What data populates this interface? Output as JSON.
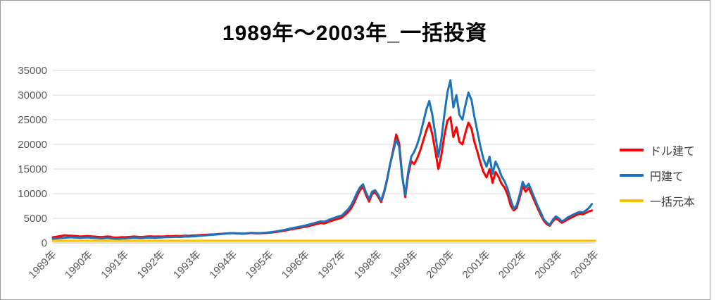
{
  "title": "1989年～2003年_一括投資",
  "colors": {
    "dollar": "#ff0000",
    "yen": "#1b73b9",
    "principal": "#ffc000",
    "gridline": "#d9d9d9",
    "axis_line": "#bfbfbf",
    "tick_text": "#595959",
    "frame_border": "#9a9a9a"
  },
  "chart_data": {
    "type": "line",
    "title": "1989年～2003年_一括投資",
    "xlabel": "",
    "ylabel": "",
    "ylim": [
      0,
      35000
    ],
    "grid": true,
    "legend_position": "right",
    "y_ticks": [
      0,
      5000,
      10000,
      15000,
      20000,
      25000,
      30000,
      35000
    ],
    "x_tick_labels": [
      "1989年",
      "1990年",
      "1991年",
      "1992年",
      "1993年",
      "1994年",
      "1995年",
      "1996年",
      "1997年",
      "1998年",
      "1999年",
      "2000年",
      "2001年",
      "2002年",
      "2003年",
      "2003年"
    ],
    "x_start_year": 1989,
    "x_end_year": 2004,
    "points_per_year": 12,
    "series": [
      {
        "name": "ドル建て",
        "color": "#ff0000",
        "values": [
          1150,
          1250,
          1350,
          1450,
          1550,
          1500,
          1480,
          1430,
          1380,
          1300,
          1340,
          1400,
          1380,
          1330,
          1280,
          1230,
          1180,
          1230,
          1320,
          1270,
          1130,
          1080,
          1130,
          1180,
          1150,
          1200,
          1260,
          1300,
          1250,
          1210,
          1230,
          1290,
          1350,
          1310,
          1280,
          1330,
          1290,
          1330,
          1380,
          1360,
          1390,
          1430,
          1400,
          1430,
          1480,
          1450,
          1500,
          1540,
          1560,
          1600,
          1640,
          1670,
          1700,
          1730,
          1760,
          1810,
          1860,
          1900,
          1940,
          1980,
          1990,
          1950,
          1910,
          1870,
          1910,
          1960,
          2010,
          1970,
          1940,
          1970,
          2000,
          2040,
          2080,
          2140,
          2220,
          2300,
          2400,
          2500,
          2620,
          2740,
          2860,
          2970,
          3080,
          3190,
          3300,
          3440,
          3590,
          3740,
          3890,
          4050,
          3950,
          4150,
          4380,
          4580,
          4760,
          4960,
          5150,
          5700,
          6250,
          7000,
          8100,
          9500,
          10700,
          11400,
          9700,
          8400,
          9900,
          10300,
          9400,
          8300,
          10200,
          12800,
          16000,
          18800,
          22000,
          20200,
          13800,
          9300,
          13900,
          16600,
          16000,
          17200,
          18800,
          20800,
          22800,
          24400,
          22000,
          18600,
          15000,
          17800,
          21800,
          24800,
          25500,
          21500,
          23500,
          20500,
          20000,
          22400,
          24400,
          23200,
          20400,
          18400,
          16200,
          14400,
          13300,
          15000,
          12200,
          14400,
          13400,
          12000,
          11200,
          9800,
          7600,
          6600,
          7100,
          9200,
          11500,
          10400,
          11200,
          9800,
          8400,
          7000,
          5700,
          4500,
          3800,
          3500,
          4400,
          5000,
          4600,
          4100,
          4400,
          4800,
          5100,
          5400,
          5700,
          5900,
          5800,
          6100,
          6400,
          6600
        ]
      },
      {
        "name": "円建て",
        "color": "#1b73b9",
        "values": [
          850,
          900,
          950,
          1000,
          1050,
          1100,
          1150,
          1120,
          1080,
          1020,
          1060,
          1120,
          1100,
          1060,
          1000,
          960,
          920,
          960,
          1010,
          960,
          880,
          820,
          860,
          900,
          920,
          960,
          1010,
          1050,
          1010,
          980,
          1000,
          1050,
          1100,
          1070,
          1040,
          1090,
          1120,
          1160,
          1200,
          1180,
          1210,
          1250,
          1220,
          1250,
          1300,
          1280,
          1320,
          1360,
          1420,
          1470,
          1520,
          1560,
          1600,
          1650,
          1700,
          1760,
          1820,
          1880,
          1930,
          1980,
          2000,
          1970,
          1940,
          1900,
          1950,
          2000,
          2050,
          2010,
          1980,
          2020,
          2060,
          2100,
          2160,
          2240,
          2330,
          2430,
          2540,
          2660,
          2790,
          2930,
          3060,
          3180,
          3300,
          3430,
          3560,
          3720,
          3890,
          4060,
          4230,
          4400,
          4300,
          4520,
          4780,
          5000,
          5200,
          5420,
          5600,
          6200,
          6800,
          7600,
          8800,
          10200,
          11300,
          11900,
          10200,
          8900,
          10400,
          10700,
          9800,
          8600,
          10500,
          13000,
          16000,
          18500,
          21000,
          19500,
          13500,
          9700,
          14500,
          17500,
          18500,
          20000,
          22000,
          24500,
          27000,
          28800,
          26000,
          22000,
          17500,
          21000,
          26000,
          30500,
          33000,
          27500,
          30000,
          26000,
          25000,
          28000,
          30500,
          29000,
          25500,
          22500,
          19500,
          17000,
          15500,
          17500,
          14000,
          16500,
          15200,
          13500,
          12500,
          11000,
          8800,
          7000,
          7600,
          9800,
          12400,
          11200,
          12000,
          10500,
          9000,
          7500,
          6200,
          4800,
          4100,
          3700,
          4700,
          5400,
          5000,
          4400,
          4700,
          5200,
          5500,
          5800,
          6100,
          6300,
          6200,
          6600,
          7100,
          7900
        ]
      },
      {
        "name": "一括元本",
        "color": "#ffc000",
        "constant": 450
      }
    ]
  }
}
